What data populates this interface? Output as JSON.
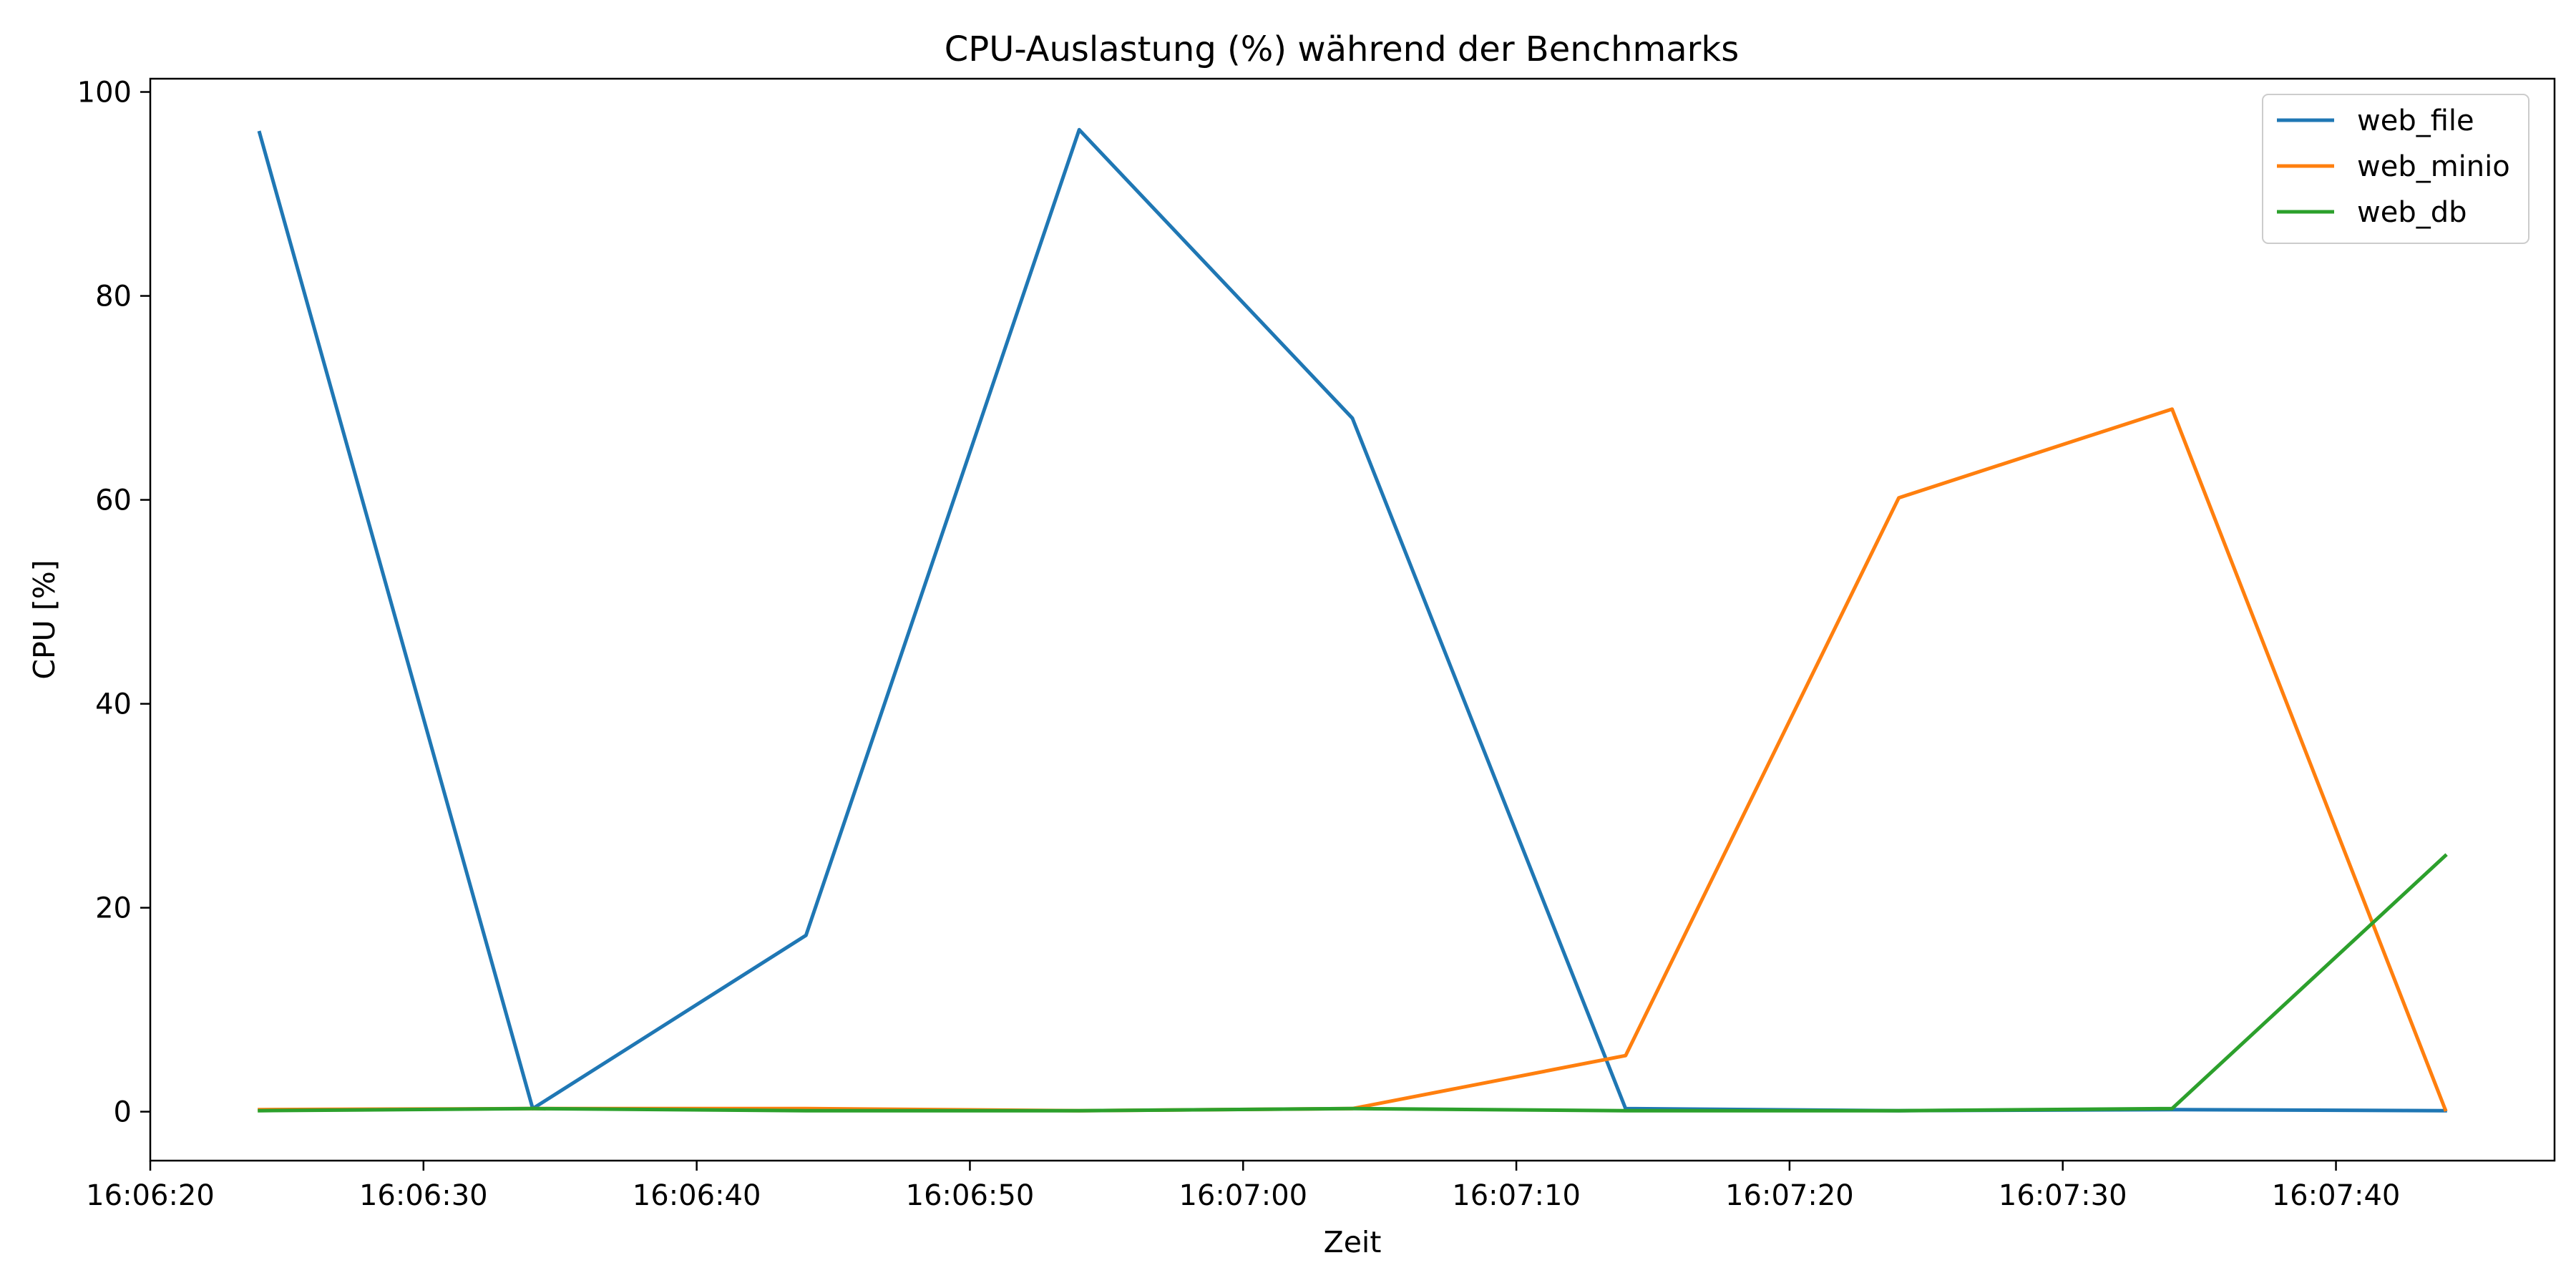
{
  "chart_data": {
    "type": "line",
    "title": "CPU-Auslastung (%) während der Benchmarks",
    "xlabel": "Zeit",
    "ylabel": "CPU [%]",
    "x": [
      "16:06:24",
      "16:06:34",
      "16:06:44",
      "16:06:54",
      "16:07:04",
      "16:07:14",
      "16:07:24",
      "16:07:34",
      "16:07:44"
    ],
    "xlim": [
      "16:06:20",
      "16:07:48"
    ],
    "xticks": [
      "16:06:20",
      "16:06:30",
      "16:06:40",
      "16:06:50",
      "16:07:00",
      "16:07:10",
      "16:07:20",
      "16:07:30",
      "16:07:40"
    ],
    "ylim": [
      -4.8,
      101.3
    ],
    "yticks": [
      0,
      20,
      40,
      60,
      80,
      100
    ],
    "grid": false,
    "legend_position": "top-right",
    "series": [
      {
        "name": "web_file",
        "color": "#1f77b4",
        "values": [
          96.0,
          0.3,
          17.3,
          96.3,
          68.0,
          0.3,
          0.1,
          0.2,
          0.1
        ]
      },
      {
        "name": "web_minio",
        "color": "#ff7f0e",
        "values": [
          0.2,
          0.3,
          0.3,
          0.1,
          0.3,
          5.5,
          60.2,
          68.9,
          0.2
        ]
      },
      {
        "name": "web_db",
        "color": "#2ca02c",
        "values": [
          0.1,
          0.3,
          0.1,
          0.1,
          0.3,
          0.1,
          0.1,
          0.3,
          25.1
        ]
      }
    ]
  }
}
